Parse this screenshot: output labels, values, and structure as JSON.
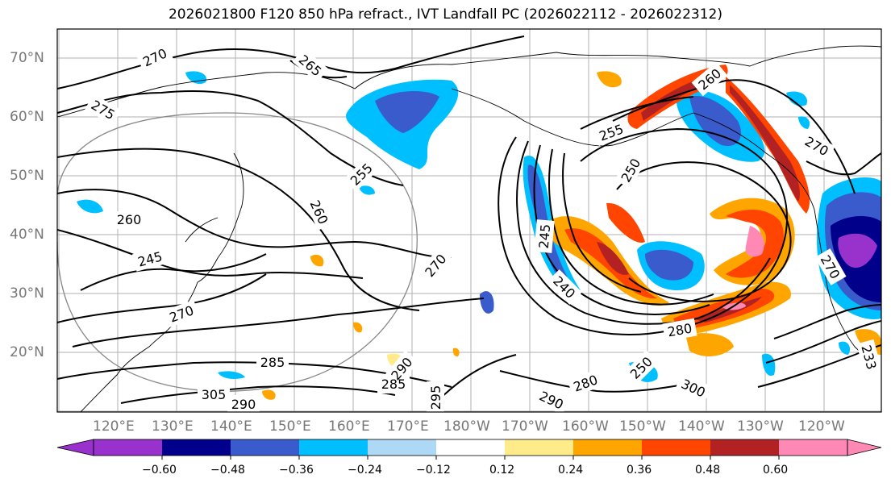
{
  "title": "2026021800 F120 850 hPa refract., IVT Landfall PC (2026022112 - 2026022312)",
  "lat_labels": [
    "70°N",
    "60°N",
    "50°N",
    "40°N",
    "30°N",
    "20°N"
  ],
  "lon_labels": [
    "120°E",
    "130°E",
    "140°E",
    "150°E",
    "160°E",
    "170°E",
    "180°W",
    "170°W",
    "160°W",
    "150°W",
    "140°W",
    "130°W",
    "120°W"
  ],
  "contour_labels": [
    "270",
    "265",
    "275",
    "255",
    "260",
    "245",
    "270",
    "285",
    "305",
    "290",
    "290",
    "285",
    "295",
    "280",
    "290",
    "300",
    "260",
    "255",
    "270",
    "250",
    "245",
    "240",
    "280",
    "250",
    "233",
    "270"
  ],
  "colorbar": {
    "ticks": [
      "−0.60",
      "−0.48",
      "−0.36",
      "−0.24",
      "−0.12",
      "0.12",
      "0.24",
      "0.36",
      "0.48",
      "0.60"
    ],
    "colors": [
      "#9932cc",
      "#00008b",
      "#3a5bcc",
      "#00bfff",
      "#add8f6",
      "#ffffff",
      "#ffeb8a",
      "#ffa500",
      "#ff4500",
      "#b22222",
      "#ff88b4"
    ]
  }
}
